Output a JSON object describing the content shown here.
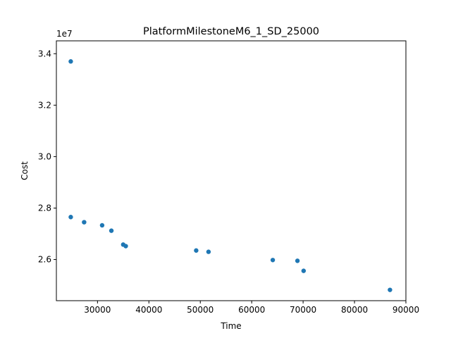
{
  "chart_data": {
    "type": "scatter",
    "title": "PlatformMilestoneM6_1_SD_25000",
    "xlabel": "Time",
    "ylabel": "Cost",
    "y_offset_label": "1e7",
    "xlim": [
      22000,
      90000
    ],
    "ylim": [
      24400000,
      34500000
    ],
    "x_ticks": [
      30000,
      40000,
      50000,
      60000,
      70000,
      80000,
      90000
    ],
    "x_tick_labels": [
      "30000",
      "40000",
      "50000",
      "60000",
      "70000",
      "80000",
      "90000"
    ],
    "y_ticks": [
      26000000,
      28000000,
      30000000,
      32000000,
      34000000
    ],
    "y_tick_labels": [
      "2.6",
      "2.8",
      "3.0",
      "3.2",
      "3.4"
    ],
    "grid": false,
    "marker_color": "#1f77b4",
    "series": [
      {
        "points": [
          {
            "x": 24800,
            "y": 33700000
          },
          {
            "x": 24800,
            "y": 27650000
          },
          {
            "x": 27400,
            "y": 27450000
          },
          {
            "x": 30900,
            "y": 27330000
          },
          {
            "x": 32700,
            "y": 27120000
          },
          {
            "x": 35000,
            "y": 26580000
          },
          {
            "x": 35500,
            "y": 26520000
          },
          {
            "x": 49200,
            "y": 26350000
          },
          {
            "x": 51600,
            "y": 26300000
          },
          {
            "x": 64100,
            "y": 25980000
          },
          {
            "x": 68900,
            "y": 25950000
          },
          {
            "x": 70100,
            "y": 25560000
          },
          {
            "x": 86900,
            "y": 24820000
          }
        ]
      }
    ]
  }
}
